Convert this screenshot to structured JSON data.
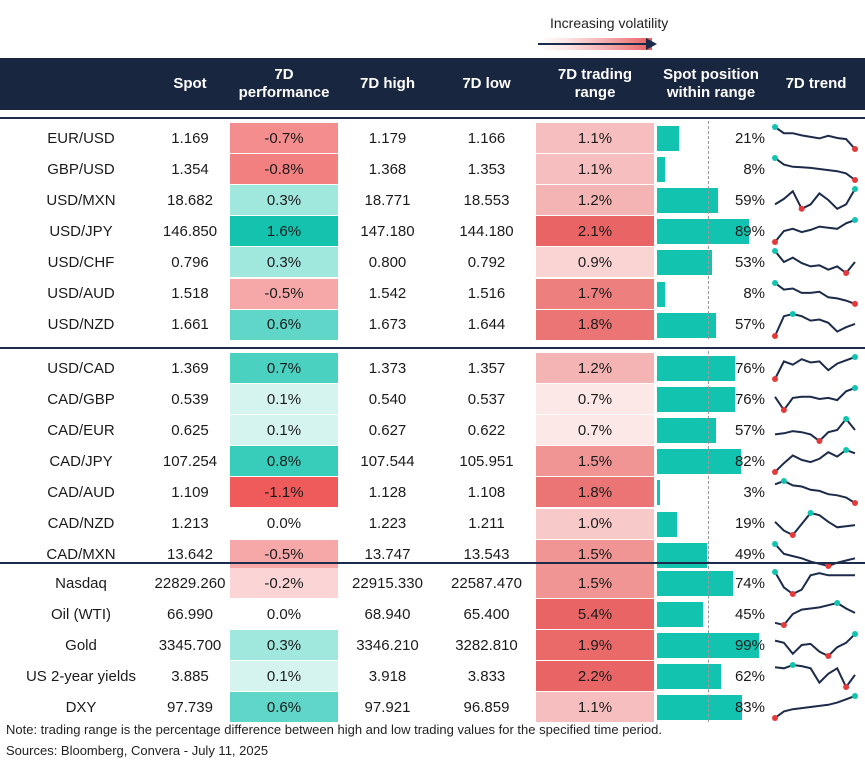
{
  "legend": {
    "label": "Increasing volatility"
  },
  "headers": {
    "spot": "Spot",
    "perf_line1": "7D",
    "perf_line2": "performance",
    "high": "7D high",
    "low": "7D low",
    "range_line1": "7D trading",
    "range_line2": "range",
    "pos_line1": "Spot position",
    "pos_line2": "within range",
    "trend": "7D trend"
  },
  "chart_data": {
    "type": "table",
    "columns": [
      "",
      "Spot",
      "7D performance",
      "7D high",
      "7D low",
      "7D trading range",
      "Spot position within range",
      "7D trend"
    ],
    "groups": [
      {
        "rows": [
          {
            "name": "EUR/USD",
            "spot": "1.169",
            "perf": "-0.7%",
            "perf_value": -0.7,
            "high": "1.179",
            "low": "1.166",
            "range": "1.1%",
            "range_value": 1.1,
            "pos": "21%",
            "pos_value": 21,
            "trend": [
              1.0,
              0.72,
              0.72,
              0.62,
              0.55,
              0.48,
              0.6,
              0.5,
              0.45,
              0.0
            ]
          },
          {
            "name": "GBP/USD",
            "spot": "1.354",
            "perf": "-0.8%",
            "perf_value": -0.8,
            "high": "1.368",
            "low": "1.353",
            "range": "1.1%",
            "range_value": 1.1,
            "pos": "8%",
            "pos_value": 8,
            "trend": [
              1.0,
              0.7,
              0.6,
              0.58,
              0.55,
              0.5,
              0.45,
              0.4,
              0.3,
              0.0
            ]
          },
          {
            "name": "USD/MXN",
            "spot": "18.682",
            "perf": "0.3%",
            "perf_value": 0.3,
            "high": "18.771",
            "low": "18.553",
            "range": "1.2%",
            "range_value": 1.2,
            "pos": "59%",
            "pos_value": 59,
            "trend": [
              0.3,
              0.55,
              0.9,
              0.1,
              0.3,
              0.8,
              0.5,
              0.1,
              0.3,
              1.0
            ]
          },
          {
            "name": "USD/JPY",
            "spot": "146.850",
            "perf": "1.6%",
            "perf_value": 1.6,
            "high": "147.180",
            "low": "144.180",
            "range": "2.1%",
            "range_value": 2.1,
            "pos": "89%",
            "pos_value": 89,
            "trend": [
              0.0,
              0.5,
              0.6,
              0.45,
              0.55,
              0.7,
              0.65,
              0.6,
              0.85,
              1.0
            ]
          },
          {
            "name": "USD/CHF",
            "spot": "0.796",
            "perf": "0.3%",
            "perf_value": 0.3,
            "high": "0.800",
            "low": "0.792",
            "range": "0.9%",
            "range_value": 0.9,
            "pos": "53%",
            "pos_value": 53,
            "trend": [
              1.0,
              0.5,
              0.7,
              0.45,
              0.3,
              0.35,
              0.15,
              0.3,
              0.0,
              0.5
            ]
          },
          {
            "name": "USD/AUD",
            "spot": "1.518",
            "perf": "-0.5%",
            "perf_value": -0.5,
            "high": "1.542",
            "low": "1.516",
            "range": "1.7%",
            "range_value": 1.7,
            "pos": "8%",
            "pos_value": 8,
            "trend": [
              1.0,
              0.7,
              0.75,
              0.55,
              0.55,
              0.6,
              0.35,
              0.3,
              0.2,
              0.05
            ]
          },
          {
            "name": "USD/NZD",
            "spot": "1.661",
            "perf": "0.6%",
            "perf_value": 0.6,
            "high": "1.673",
            "low": "1.644",
            "range": "1.8%",
            "range_value": 1.8,
            "pos": "57%",
            "pos_value": 57,
            "trend": [
              0.0,
              0.9,
              1.0,
              0.9,
              0.7,
              0.75,
              0.6,
              0.2,
              0.4,
              0.55
            ]
          }
        ]
      },
      {
        "rows": [
          {
            "name": "USD/CAD",
            "spot": "1.369",
            "perf": "0.7%",
            "perf_value": 0.7,
            "high": "1.373",
            "low": "1.357",
            "range": "1.2%",
            "range_value": 1.2,
            "pos": "76%",
            "pos_value": 76,
            "trend": [
              0.0,
              0.8,
              0.65,
              0.9,
              0.75,
              0.8,
              0.4,
              0.7,
              0.85,
              1.0
            ]
          },
          {
            "name": "CAD/GBP",
            "spot": "0.539",
            "perf": "0.1%",
            "perf_value": 0.1,
            "high": "0.540",
            "low": "0.537",
            "range": "0.7%",
            "range_value": 0.7,
            "pos": "76%",
            "pos_value": 76,
            "trend": [
              0.6,
              0.0,
              0.55,
              0.6,
              0.6,
              0.5,
              0.55,
              0.45,
              0.85,
              1.0
            ]
          },
          {
            "name": "CAD/EUR",
            "spot": "0.625",
            "perf": "0.1%",
            "perf_value": 0.1,
            "high": "0.627",
            "low": "0.622",
            "range": "0.7%",
            "range_value": 0.7,
            "pos": "57%",
            "pos_value": 57,
            "trend": [
              0.3,
              0.35,
              0.45,
              0.4,
              0.3,
              0.0,
              0.4,
              0.5,
              1.0,
              0.5
            ]
          },
          {
            "name": "CAD/JPY",
            "spot": "107.254",
            "perf": "0.8%",
            "perf_value": 0.8,
            "high": "107.544",
            "low": "105.951",
            "range": "1.5%",
            "range_value": 1.5,
            "pos": "82%",
            "pos_value": 82,
            "trend": [
              0.0,
              0.4,
              0.75,
              0.55,
              0.45,
              0.6,
              0.9,
              0.7,
              1.0,
              0.85
            ]
          },
          {
            "name": "CAD/AUD",
            "spot": "1.109",
            "perf": "-1.1%",
            "perf_value": -1.1,
            "high": "1.128",
            "low": "1.108",
            "range": "1.8%",
            "range_value": 1.8,
            "pos": "3%",
            "pos_value": 3,
            "trend": [
              0.85,
              1.0,
              0.8,
              0.75,
              0.6,
              0.55,
              0.4,
              0.35,
              0.25,
              0.0
            ]
          },
          {
            "name": "CAD/NZD",
            "spot": "1.213",
            "perf": "0.0%",
            "perf_value": 0.0,
            "high": "1.223",
            "low": "1.211",
            "range": "1.0%",
            "range_value": 1.0,
            "pos": "19%",
            "pos_value": 19,
            "trend": [
              0.6,
              0.2,
              0.0,
              0.5,
              1.0,
              0.9,
              0.6,
              0.35,
              0.4,
              0.45
            ]
          },
          {
            "name": "CAD/MXN",
            "spot": "13.642",
            "perf": "-0.5%",
            "perf_value": -0.5,
            "high": "13.747",
            "low": "13.543",
            "range": "1.5%",
            "range_value": 1.5,
            "pos": "49%",
            "pos_value": 49,
            "trend": [
              1.0,
              0.55,
              0.45,
              0.35,
              0.2,
              0.1,
              0.0,
              0.15,
              0.25,
              0.35
            ]
          }
        ]
      },
      {
        "rows": [
          {
            "name": "Nasdaq",
            "spot": "22829.260",
            "perf": "-0.2%",
            "perf_value": -0.2,
            "high": "22915.330",
            "low": "22587.470",
            "range": "1.5%",
            "range_value": 1.5,
            "pos": "74%",
            "pos_value": 74,
            "trend": [
              1.0,
              0.3,
              0.0,
              0.2,
              0.85,
              0.95,
              0.85,
              0.85,
              0.85,
              0.85
            ]
          },
          {
            "name": "Oil (WTI)",
            "spot": "66.990",
            "perf": "0.0%",
            "perf_value": 0.0,
            "high": "68.940",
            "low": "65.400",
            "range": "5.4%",
            "range_value": 5.4,
            "pos": "45%",
            "pos_value": 45,
            "trend": [
              0.1,
              0.0,
              0.5,
              0.7,
              0.75,
              0.8,
              0.9,
              1.0,
              0.75,
              0.55
            ]
          },
          {
            "name": "Gold",
            "spot": "3345.700",
            "perf": "0.3%",
            "perf_value": 0.3,
            "high": "3346.210",
            "low": "3282.810",
            "range": "1.9%",
            "range_value": 1.9,
            "pos": "99%",
            "pos_value": 99,
            "trend": [
              0.7,
              0.6,
              0.1,
              0.5,
              0.55,
              0.2,
              0.0,
              0.4,
              0.6,
              1.0
            ]
          },
          {
            "name": "US 2-year yields",
            "spot": "3.885",
            "perf": "0.1%",
            "perf_value": 0.1,
            "high": "3.918",
            "low": "3.833",
            "range": "2.2%",
            "range_value": 2.2,
            "pos": "62%",
            "pos_value": 62,
            "trend": [
              0.9,
              0.85,
              1.0,
              0.95,
              0.85,
              0.2,
              0.6,
              0.85,
              0.0,
              0.55
            ]
          },
          {
            "name": "DXY",
            "spot": "97.739",
            "perf": "0.6%",
            "perf_value": 0.6,
            "high": "97.921",
            "low": "96.859",
            "range": "1.1%",
            "range_value": 1.1,
            "pos": "83%",
            "pos_value": 83,
            "trend": [
              0.0,
              0.3,
              0.4,
              0.45,
              0.5,
              0.55,
              0.6,
              0.7,
              0.85,
              1.0
            ]
          }
        ]
      }
    ]
  },
  "colors": {
    "header_bg": "#192640",
    "teal_bar": "#12c4b0",
    "trend_line": "#1d2b4a",
    "trend_max": "#12c4b0",
    "trend_min": "#e23b3b"
  },
  "footer": {
    "note": "Note: trading range is the percentage difference between high and low trading values for the specified time period.",
    "source": "Sources: Bloomberg, Convera - July 11, 2025"
  }
}
